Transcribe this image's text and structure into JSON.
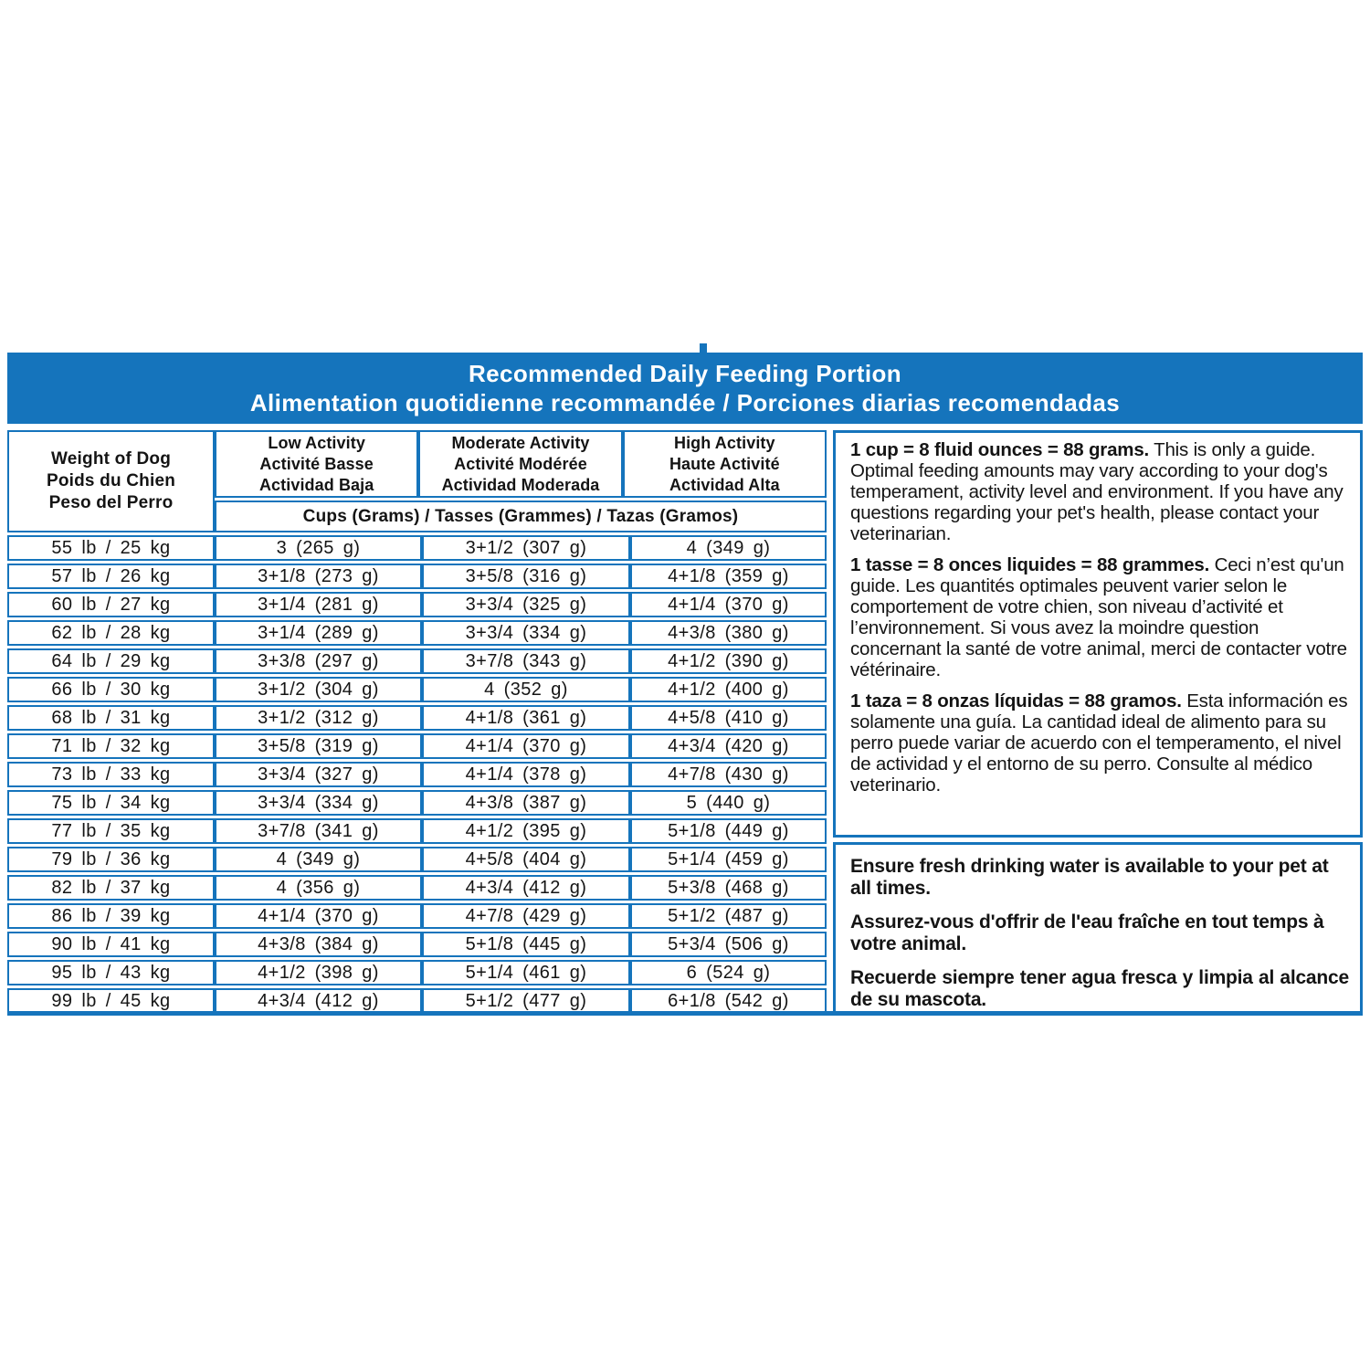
{
  "colors": {
    "accent_blue": "#1574bc",
    "text": "#141414",
    "background": "#ffffff"
  },
  "header": {
    "title_en": "Recommended Daily Feeding Portion",
    "title_fr_es": "Alimentation quotidienne recommandée / Porciones diarias recomendadas"
  },
  "table": {
    "weight_header": [
      "Weight of Dog",
      "Poids du Chien",
      "Peso del Perro"
    ],
    "activity_headers": [
      {
        "lines": [
          "Low Activity",
          "Activité Basse",
          "Actividad Baja"
        ]
      },
      {
        "lines": [
          "Moderate Activity",
          "Activité Modérée",
          "Actividad Moderada"
        ]
      },
      {
        "lines": [
          "High Activity",
          "Haute Activité",
          "Actividad Alta"
        ]
      }
    ],
    "units_header": "Cups (Grams) / Tasses (Grammes) / Tazas (Gramos)",
    "rows": [
      [
        "55 lb / 25 kg",
        "3 (265 g)",
        "3+1/2 (307 g)",
        "4 (349 g)"
      ],
      [
        "57 lb / 26 kg",
        "3+1/8 (273 g)",
        "3+5/8 (316 g)",
        "4+1/8 (359 g)"
      ],
      [
        "60 lb / 27 kg",
        "3+1/4 (281 g)",
        "3+3/4 (325 g)",
        "4+1/4 (370 g)"
      ],
      [
        "62 lb / 28 kg",
        "3+1/4 (289 g)",
        "3+3/4 (334 g)",
        "4+3/8 (380 g)"
      ],
      [
        "64 lb / 29 kg",
        "3+3/8 (297 g)",
        "3+7/8 (343 g)",
        "4+1/2 (390 g)"
      ],
      [
        "66 lb / 30 kg",
        "3+1/2 (304 g)",
        "4 (352 g)",
        "4+1/2 (400 g)"
      ],
      [
        "68 lb / 31 kg",
        "3+1/2 (312 g)",
        "4+1/8 (361 g)",
        "4+5/8 (410 g)"
      ],
      [
        "71 lb / 32 kg",
        "3+5/8 (319 g)",
        "4+1/4 (370 g)",
        "4+3/4 (420 g)"
      ],
      [
        "73 lb / 33 kg",
        "3+3/4 (327 g)",
        "4+1/4 (378 g)",
        "4+7/8 (430 g)"
      ],
      [
        "75 lb / 34 kg",
        "3+3/4 (334 g)",
        "4+3/8 (387 g)",
        "5 (440 g)"
      ],
      [
        "77 lb / 35 kg",
        "3+7/8 (341 g)",
        "4+1/2 (395 g)",
        "5+1/8 (449 g)"
      ],
      [
        "79 lb / 36 kg",
        "4 (349 g)",
        "4+5/8 (404 g)",
        "5+1/4 (459 g)"
      ],
      [
        "82 lb / 37 kg",
        "4 (356 g)",
        "4+3/4 (412 g)",
        "5+3/8 (468 g)"
      ],
      [
        "86 lb / 39 kg",
        "4+1/4 (370 g)",
        "4+7/8 (429 g)",
        "5+1/2 (487 g)"
      ],
      [
        "90 lb / 41 kg",
        "4+3/8 (384 g)",
        "5+1/8 (445 g)",
        "5+3/4 (506 g)"
      ],
      [
        "95 lb / 43 kg",
        "4+1/2 (398 g)",
        "5+1/4 (461 g)",
        "6 (524 g)"
      ],
      [
        "99 lb / 45 kg",
        "4+3/4 (412 g)",
        "5+1/2 (477 g)",
        "6+1/8 (542 g)"
      ]
    ]
  },
  "side": {
    "info": [
      {
        "lead": "1 cup = 8 fluid ounces = 88 grams.",
        "text": " This is only a guide. Optimal feeding amounts may vary according to your dog's temperament, activity level and environment. If you have any questions regarding your pet's health, please contact your veterinarian."
      },
      {
        "lead": "1 tasse = 8 onces liquides = 88 grammes.",
        "text": " Ceci n’est qu'un guide. Les quantités optimales peuvent varier selon le comportement de votre chien, son niveau d’activité et l’environnement. Si vous avez la moindre question concernant la santé de votre animal, merci de contacter votre vétérinaire."
      },
      {
        "lead": "1 taza = 8 onzas líquidas = 88 gramos.",
        "text": " Esta información es solamente una guía. La cantidad ideal de alimento para su perro puede variar de acuerdo con el temperamento, el nivel de actividad y el entorno de su perro. Consulte al médico veterinario."
      }
    ],
    "water": [
      "Ensure fresh drinking water is available to your pet at all times.",
      "Assurez-vous d'offrir de l'eau fraîche en tout temps à votre animal.",
      "Recuerde siempre tener agua fresca y limpia al alcance de su mascota."
    ]
  }
}
